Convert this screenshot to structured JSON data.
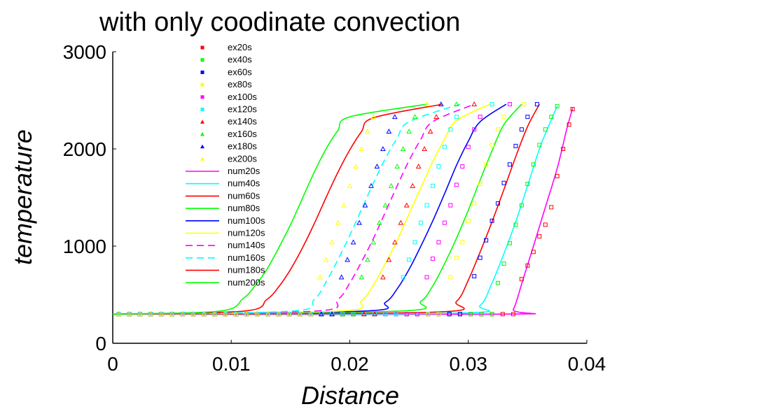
{
  "chart_data": {
    "type": "scatter",
    "title": "with only coodinate convection",
    "xlabel": "Distance",
    "ylabel": "temperature",
    "xlim": [
      0,
      0.04
    ],
    "ylim": [
      0,
      3000
    ],
    "xticks": [
      0,
      0.01,
      0.02,
      0.03,
      0.04
    ],
    "xtick_labels": [
      "0",
      "0.01",
      "0.02",
      "0.03",
      "0.04"
    ],
    "yticks": [
      0,
      1000,
      2000,
      3000
    ],
    "ytick_labels": [
      "0",
      "1000",
      "2000",
      "3000"
    ],
    "grid": false,
    "legend_position": "top-left",
    "base_temperature": 300,
    "experimental_series": [
      {
        "name": "ex20s",
        "color": "#ff0000",
        "marker": "square",
        "values": [
          [
            0.0345,
            660
          ],
          [
            0.035,
            800
          ],
          [
            0.0355,
            940
          ],
          [
            0.036,
            1100
          ],
          [
            0.0365,
            1220
          ],
          [
            0.037,
            1400
          ],
          [
            0.0375,
            1720
          ],
          [
            0.038,
            2000
          ],
          [
            0.0385,
            2250
          ],
          [
            0.0388,
            2410
          ]
        ]
      },
      {
        "name": "ex40s",
        "color": "#00ff00",
        "marker": "square",
        "values": [
          [
            0.0325,
            620
          ],
          [
            0.033,
            820
          ],
          [
            0.0335,
            1030
          ],
          [
            0.034,
            1220
          ],
          [
            0.0345,
            1420
          ],
          [
            0.035,
            1640
          ],
          [
            0.0355,
            1840
          ],
          [
            0.036,
            2040
          ],
          [
            0.0365,
            2200
          ],
          [
            0.037,
            2330
          ],
          [
            0.0375,
            2440
          ]
        ]
      },
      {
        "name": "ex60s",
        "color": "#0000ff",
        "marker": "square",
        "values": [
          [
            0.0305,
            690
          ],
          [
            0.031,
            880
          ],
          [
            0.0315,
            1060
          ],
          [
            0.032,
            1260
          ],
          [
            0.0325,
            1440
          ],
          [
            0.033,
            1650
          ],
          [
            0.0335,
            1840
          ],
          [
            0.034,
            2030
          ],
          [
            0.0345,
            2200
          ],
          [
            0.035,
            2330
          ],
          [
            0.0358,
            2460
          ]
        ]
      },
      {
        "name": "ex80s",
        "color": "#ffff00",
        "marker": "square",
        "values": [
          [
            0.0285,
            680
          ],
          [
            0.029,
            880
          ],
          [
            0.0295,
            1040
          ],
          [
            0.03,
            1260
          ],
          [
            0.0305,
            1440
          ],
          [
            0.031,
            1640
          ],
          [
            0.0315,
            1840
          ],
          [
            0.032,
            2040
          ],
          [
            0.0325,
            2200
          ],
          [
            0.033,
            2330
          ],
          [
            0.0347,
            2460
          ]
        ]
      },
      {
        "name": "ex100s",
        "color": "#ff00ff",
        "marker": "square",
        "values": [
          [
            0.0265,
            680
          ],
          [
            0.027,
            870
          ],
          [
            0.0275,
            1040
          ],
          [
            0.028,
            1240
          ],
          [
            0.0285,
            1420
          ],
          [
            0.029,
            1630
          ],
          [
            0.0295,
            1820
          ],
          [
            0.03,
            2020
          ],
          [
            0.0305,
            2200
          ],
          [
            0.031,
            2330
          ],
          [
            0.0335,
            2460
          ]
        ]
      },
      {
        "name": "ex120s",
        "color": "#00ffff",
        "marker": "square",
        "values": [
          [
            0.0245,
            680
          ],
          [
            0.025,
            860
          ],
          [
            0.0255,
            1040
          ],
          [
            0.026,
            1240
          ],
          [
            0.0265,
            1420
          ],
          [
            0.027,
            1620
          ],
          [
            0.0275,
            1820
          ],
          [
            0.028,
            2020
          ],
          [
            0.0285,
            2200
          ],
          [
            0.029,
            2330
          ],
          [
            0.032,
            2460
          ]
        ]
      },
      {
        "name": "ex140s",
        "color": "#ff0000",
        "marker": "triangle",
        "values": [
          [
            0.0228,
            680
          ],
          [
            0.0233,
            860
          ],
          [
            0.0238,
            1040
          ],
          [
            0.0243,
            1240
          ],
          [
            0.0248,
            1420
          ],
          [
            0.0253,
            1620
          ],
          [
            0.0258,
            1820
          ],
          [
            0.0263,
            2000
          ],
          [
            0.0268,
            2180
          ],
          [
            0.0273,
            2330
          ],
          [
            0.0305,
            2460
          ]
        ]
      },
      {
        "name": "ex160s",
        "color": "#00ff00",
        "marker": "triangle",
        "values": [
          [
            0.021,
            680
          ],
          [
            0.0215,
            860
          ],
          [
            0.022,
            1040
          ],
          [
            0.0225,
            1240
          ],
          [
            0.023,
            1420
          ],
          [
            0.0235,
            1620
          ],
          [
            0.024,
            1820
          ],
          [
            0.0245,
            2000
          ],
          [
            0.025,
            2180
          ],
          [
            0.0255,
            2330
          ],
          [
            0.029,
            2460
          ]
        ]
      },
      {
        "name": "ex180s",
        "color": "#0000ff",
        "marker": "triangle",
        "values": [
          [
            0.0193,
            680
          ],
          [
            0.0198,
            860
          ],
          [
            0.0203,
            1040
          ],
          [
            0.0208,
            1240
          ],
          [
            0.0213,
            1420
          ],
          [
            0.0218,
            1620
          ],
          [
            0.0223,
            1820
          ],
          [
            0.0228,
            2000
          ],
          [
            0.0233,
            2180
          ],
          [
            0.0238,
            2330
          ],
          [
            0.0277,
            2460
          ]
        ]
      },
      {
        "name": "ex200s",
        "color": "#ffff00",
        "marker": "triangle",
        "values": [
          [
            0.0175,
            680
          ],
          [
            0.018,
            860
          ],
          [
            0.0185,
            1040
          ],
          [
            0.019,
            1240
          ],
          [
            0.0195,
            1420
          ],
          [
            0.02,
            1620
          ],
          [
            0.0205,
            1820
          ],
          [
            0.021,
            2000
          ],
          [
            0.0215,
            2180
          ],
          [
            0.022,
            2330
          ],
          [
            0.0265,
            2460
          ]
        ]
      }
    ],
    "numerical_series": [
      {
        "name": "num20s",
        "color": "#ff00ff",
        "dash": false,
        "values": [
          [
            0,
            300
          ],
          [
            0.033,
            300
          ],
          [
            0.0338,
            350
          ],
          [
            0.0346,
            650
          ],
          [
            0.0355,
            1000
          ],
          [
            0.0365,
            1400
          ],
          [
            0.0375,
            1800
          ],
          [
            0.0383,
            2200
          ],
          [
            0.0388,
            2420
          ]
        ]
      },
      {
        "name": "num40s",
        "color": "#00ffff",
        "dash": false,
        "values": [
          [
            0,
            300
          ],
          [
            0.029,
            310
          ],
          [
            0.031,
            390
          ],
          [
            0.032,
            620
          ],
          [
            0.033,
            920
          ],
          [
            0.034,
            1250
          ],
          [
            0.035,
            1620
          ],
          [
            0.036,
            2000
          ],
          [
            0.037,
            2300
          ],
          [
            0.0375,
            2440
          ]
        ]
      },
      {
        "name": "num60s",
        "color": "#ff0000",
        "dash": false,
        "values": [
          [
            0,
            300
          ],
          [
            0.027,
            320
          ],
          [
            0.029,
            430
          ],
          [
            0.03,
            650
          ],
          [
            0.031,
            940
          ],
          [
            0.032,
            1250
          ],
          [
            0.033,
            1580
          ],
          [
            0.034,
            1920
          ],
          [
            0.035,
            2230
          ],
          [
            0.036,
            2460
          ]
        ]
      },
      {
        "name": "num80s",
        "color": "#00ff00",
        "dash": false,
        "values": [
          [
            0,
            300
          ],
          [
            0.024,
            330
          ],
          [
            0.026,
            430
          ],
          [
            0.027,
            590
          ],
          [
            0.028,
            820
          ],
          [
            0.029,
            1080
          ],
          [
            0.03,
            1370
          ],
          [
            0.031,
            1680
          ],
          [
            0.032,
            1980
          ],
          [
            0.033,
            2250
          ],
          [
            0.0345,
            2460
          ]
        ]
      },
      {
        "name": "num100s",
        "color": "#0000ff",
        "dash": false,
        "values": [
          [
            0,
            300
          ],
          [
            0.021,
            330
          ],
          [
            0.023,
            420
          ],
          [
            0.024,
            560
          ],
          [
            0.025,
            760
          ],
          [
            0.026,
            1000
          ],
          [
            0.027,
            1260
          ],
          [
            0.028,
            1540
          ],
          [
            0.029,
            1830
          ],
          [
            0.03,
            2080
          ],
          [
            0.031,
            2280
          ],
          [
            0.0332,
            2460
          ]
        ]
      },
      {
        "name": "num120s",
        "color": "#ffff00",
        "dash": false,
        "values": [
          [
            0,
            300
          ],
          [
            0.019,
            330
          ],
          [
            0.021,
            440
          ],
          [
            0.022,
            600
          ],
          [
            0.023,
            820
          ],
          [
            0.024,
            1060
          ],
          [
            0.025,
            1330
          ],
          [
            0.026,
            1600
          ],
          [
            0.027,
            1870
          ],
          [
            0.028,
            2100
          ],
          [
            0.029,
            2290
          ],
          [
            0.0318,
            2460
          ]
        ]
      },
      {
        "name": "num140s",
        "color": "#ff00ff",
        "dash": true,
        "values": [
          [
            0,
            300
          ],
          [
            0.017,
            330
          ],
          [
            0.019,
            450
          ],
          [
            0.02,
            620
          ],
          [
            0.021,
            840
          ],
          [
            0.022,
            1080
          ],
          [
            0.023,
            1350
          ],
          [
            0.024,
            1620
          ],
          [
            0.025,
            1880
          ],
          [
            0.026,
            2100
          ],
          [
            0.027,
            2280
          ],
          [
            0.0305,
            2460
          ]
        ]
      },
      {
        "name": "num160s",
        "color": "#00ffff",
        "dash": true,
        "values": [
          [
            0,
            300
          ],
          [
            0.015,
            330
          ],
          [
            0.017,
            450
          ],
          [
            0.018,
            630
          ],
          [
            0.019,
            860
          ],
          [
            0.02,
            1110
          ],
          [
            0.021,
            1380
          ],
          [
            0.022,
            1650
          ],
          [
            0.023,
            1900
          ],
          [
            0.024,
            2110
          ],
          [
            0.025,
            2280
          ],
          [
            0.0293,
            2460
          ]
        ]
      },
      {
        "name": "num180s",
        "color": "#ff0000",
        "dash": false,
        "values": [
          [
            0,
            300
          ],
          [
            0.011,
            330
          ],
          [
            0.013,
            450
          ],
          [
            0.014,
            580
          ],
          [
            0.015,
            760
          ],
          [
            0.016,
            980
          ],
          [
            0.017,
            1230
          ],
          [
            0.018,
            1500
          ],
          [
            0.019,
            1760
          ],
          [
            0.02,
            1990
          ],
          [
            0.021,
            2180
          ],
          [
            0.022,
            2320
          ],
          [
            0.0278,
            2460
          ]
        ]
      },
      {
        "name": "num200s",
        "color": "#00ff00",
        "dash": false,
        "values": [
          [
            0,
            300
          ],
          [
            0.009,
            330
          ],
          [
            0.011,
            460
          ],
          [
            0.012,
            590
          ],
          [
            0.013,
            760
          ],
          [
            0.014,
            980
          ],
          [
            0.015,
            1220
          ],
          [
            0.016,
            1490
          ],
          [
            0.017,
            1760
          ],
          [
            0.018,
            2000
          ],
          [
            0.019,
            2190
          ],
          [
            0.02,
            2330
          ],
          [
            0.0265,
            2460
          ]
        ]
      }
    ]
  }
}
